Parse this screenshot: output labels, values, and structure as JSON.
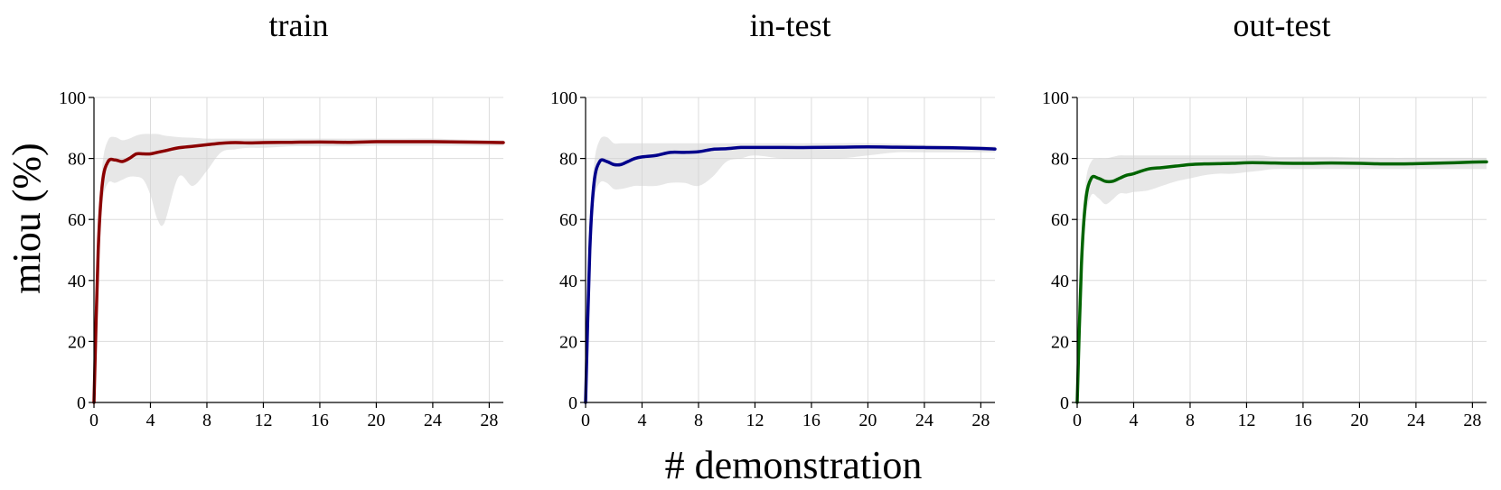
{
  "figure": {
    "xlabel": "# demonstration",
    "ylabel": "miou (%)"
  },
  "chart_data": [
    {
      "type": "line",
      "title": "train",
      "color": "#8b0000",
      "xlim": [
        0,
        29
      ],
      "ylim": [
        0,
        100
      ],
      "xticks": [
        0,
        4,
        8,
        12,
        16,
        20,
        24,
        28
      ],
      "yticks": [
        0,
        20,
        40,
        60,
        80,
        100
      ],
      "x": [
        0,
        0.3,
        0.6,
        1,
        1.5,
        2,
        2.5,
        3,
        3.5,
        4,
        4.5,
        5,
        6,
        7,
        8,
        9,
        10,
        11,
        12,
        14,
        16,
        18,
        20,
        22,
        24,
        26,
        28,
        29
      ],
      "mean": [
        0,
        50,
        72,
        79,
        79.5,
        79,
        80,
        81.5,
        81.5,
        81.5,
        82,
        82.5,
        83.5,
        84,
        84.5,
        85,
        85.2,
        85.1,
        85.2,
        85.3,
        85.4,
        85.3,
        85.5,
        85.5,
        85.5,
        85.4,
        85.3,
        85.2
      ],
      "upper": [
        0,
        55,
        78,
        86,
        87,
        86,
        86.5,
        87.5,
        88,
        88,
        88,
        87.5,
        87,
        86.8,
        86.5,
        86.5,
        86.5,
        86.5,
        86.5,
        86.5,
        86.5,
        86.5,
        86.5,
        86.5,
        86.5,
        86.2,
        86,
        86
      ],
      "lower": [
        0,
        42,
        65,
        72,
        72,
        73,
        74,
        74,
        73,
        68,
        60,
        59,
        74,
        71,
        76,
        82,
        83,
        83.5,
        83.5,
        84,
        84,
        84,
        84.2,
        84.2,
        84.2,
        84.2,
        84.2,
        84.2
      ]
    },
    {
      "type": "line",
      "title": "in-test",
      "color": "#00008b",
      "xlim": [
        0,
        29
      ],
      "ylim": [
        0,
        100
      ],
      "xticks": [
        0,
        4,
        8,
        12,
        16,
        20,
        24,
        28
      ],
      "yticks": [
        0,
        20,
        40,
        60,
        80,
        100
      ],
      "x": [
        0,
        0.3,
        0.6,
        1,
        1.5,
        2,
        2.5,
        3,
        3.5,
        4,
        5,
        6,
        7,
        8,
        9,
        10,
        11,
        12,
        14,
        16,
        18,
        20,
        22,
        24,
        26,
        28,
        29
      ],
      "mean": [
        0,
        50,
        72,
        79,
        79,
        78,
        78,
        79,
        80,
        80.5,
        81,
        82,
        82,
        82.2,
        83,
        83.2,
        83.6,
        83.6,
        83.6,
        83.6,
        83.7,
        83.8,
        83.7,
        83.6,
        83.5,
        83.3,
        83.1
      ],
      "upper": [
        0,
        55,
        78,
        86,
        87,
        85,
        85,
        85,
        85,
        85,
        85,
        85,
        85,
        85,
        85,
        85,
        85,
        85,
        85,
        85,
        85,
        85,
        84.8,
        84.5,
        84.3,
        84,
        84
      ],
      "lower": [
        0,
        45,
        66,
        72,
        72,
        70,
        70,
        70.5,
        71,
        71,
        71,
        72,
        72,
        71,
        74,
        79,
        80,
        81,
        80,
        80,
        80,
        81,
        82,
        82,
        82,
        82,
        82
      ]
    },
    {
      "type": "line",
      "title": "out-test",
      "color": "#006400",
      "xlim": [
        0,
        29
      ],
      "ylim": [
        0,
        100
      ],
      "xticks": [
        0,
        4,
        8,
        12,
        16,
        20,
        24,
        28
      ],
      "yticks": [
        0,
        20,
        40,
        60,
        80,
        100
      ],
      "x": [
        0,
        0.3,
        0.6,
        1,
        1.5,
        2,
        2.5,
        3,
        3.5,
        4,
        5,
        6,
        7,
        8,
        9,
        10,
        11,
        12,
        13,
        14,
        16,
        18,
        20,
        22,
        24,
        26,
        28,
        29
      ],
      "mean": [
        0,
        45,
        66,
        73.5,
        73.5,
        72.5,
        72.5,
        73.5,
        74.5,
        75,
        76.5,
        77,
        77.5,
        78,
        78.2,
        78.3,
        78.4,
        78.6,
        78.6,
        78.5,
        78.4,
        78.5,
        78.4,
        78.2,
        78.3,
        78.5,
        78.8,
        78.9
      ],
      "upper": [
        0,
        50,
        72,
        79,
        80,
        80,
        80.5,
        81,
        81,
        81,
        81,
        81,
        81,
        81,
        81,
        81,
        81,
        81,
        81,
        80.5,
        80.5,
        80.5,
        80.3,
        80.2,
        80.2,
        80.2,
        80.2,
        80.2
      ],
      "lower": [
        0,
        40,
        60,
        68,
        67,
        65,
        66.5,
        68.5,
        68.5,
        69,
        69.5,
        71,
        72.5,
        73.5,
        74.5,
        75,
        75,
        75.5,
        76,
        76.5,
        76.5,
        76.5,
        76.5,
        76.5,
        76.5,
        76.5,
        76.5,
        76.5
      ]
    }
  ]
}
